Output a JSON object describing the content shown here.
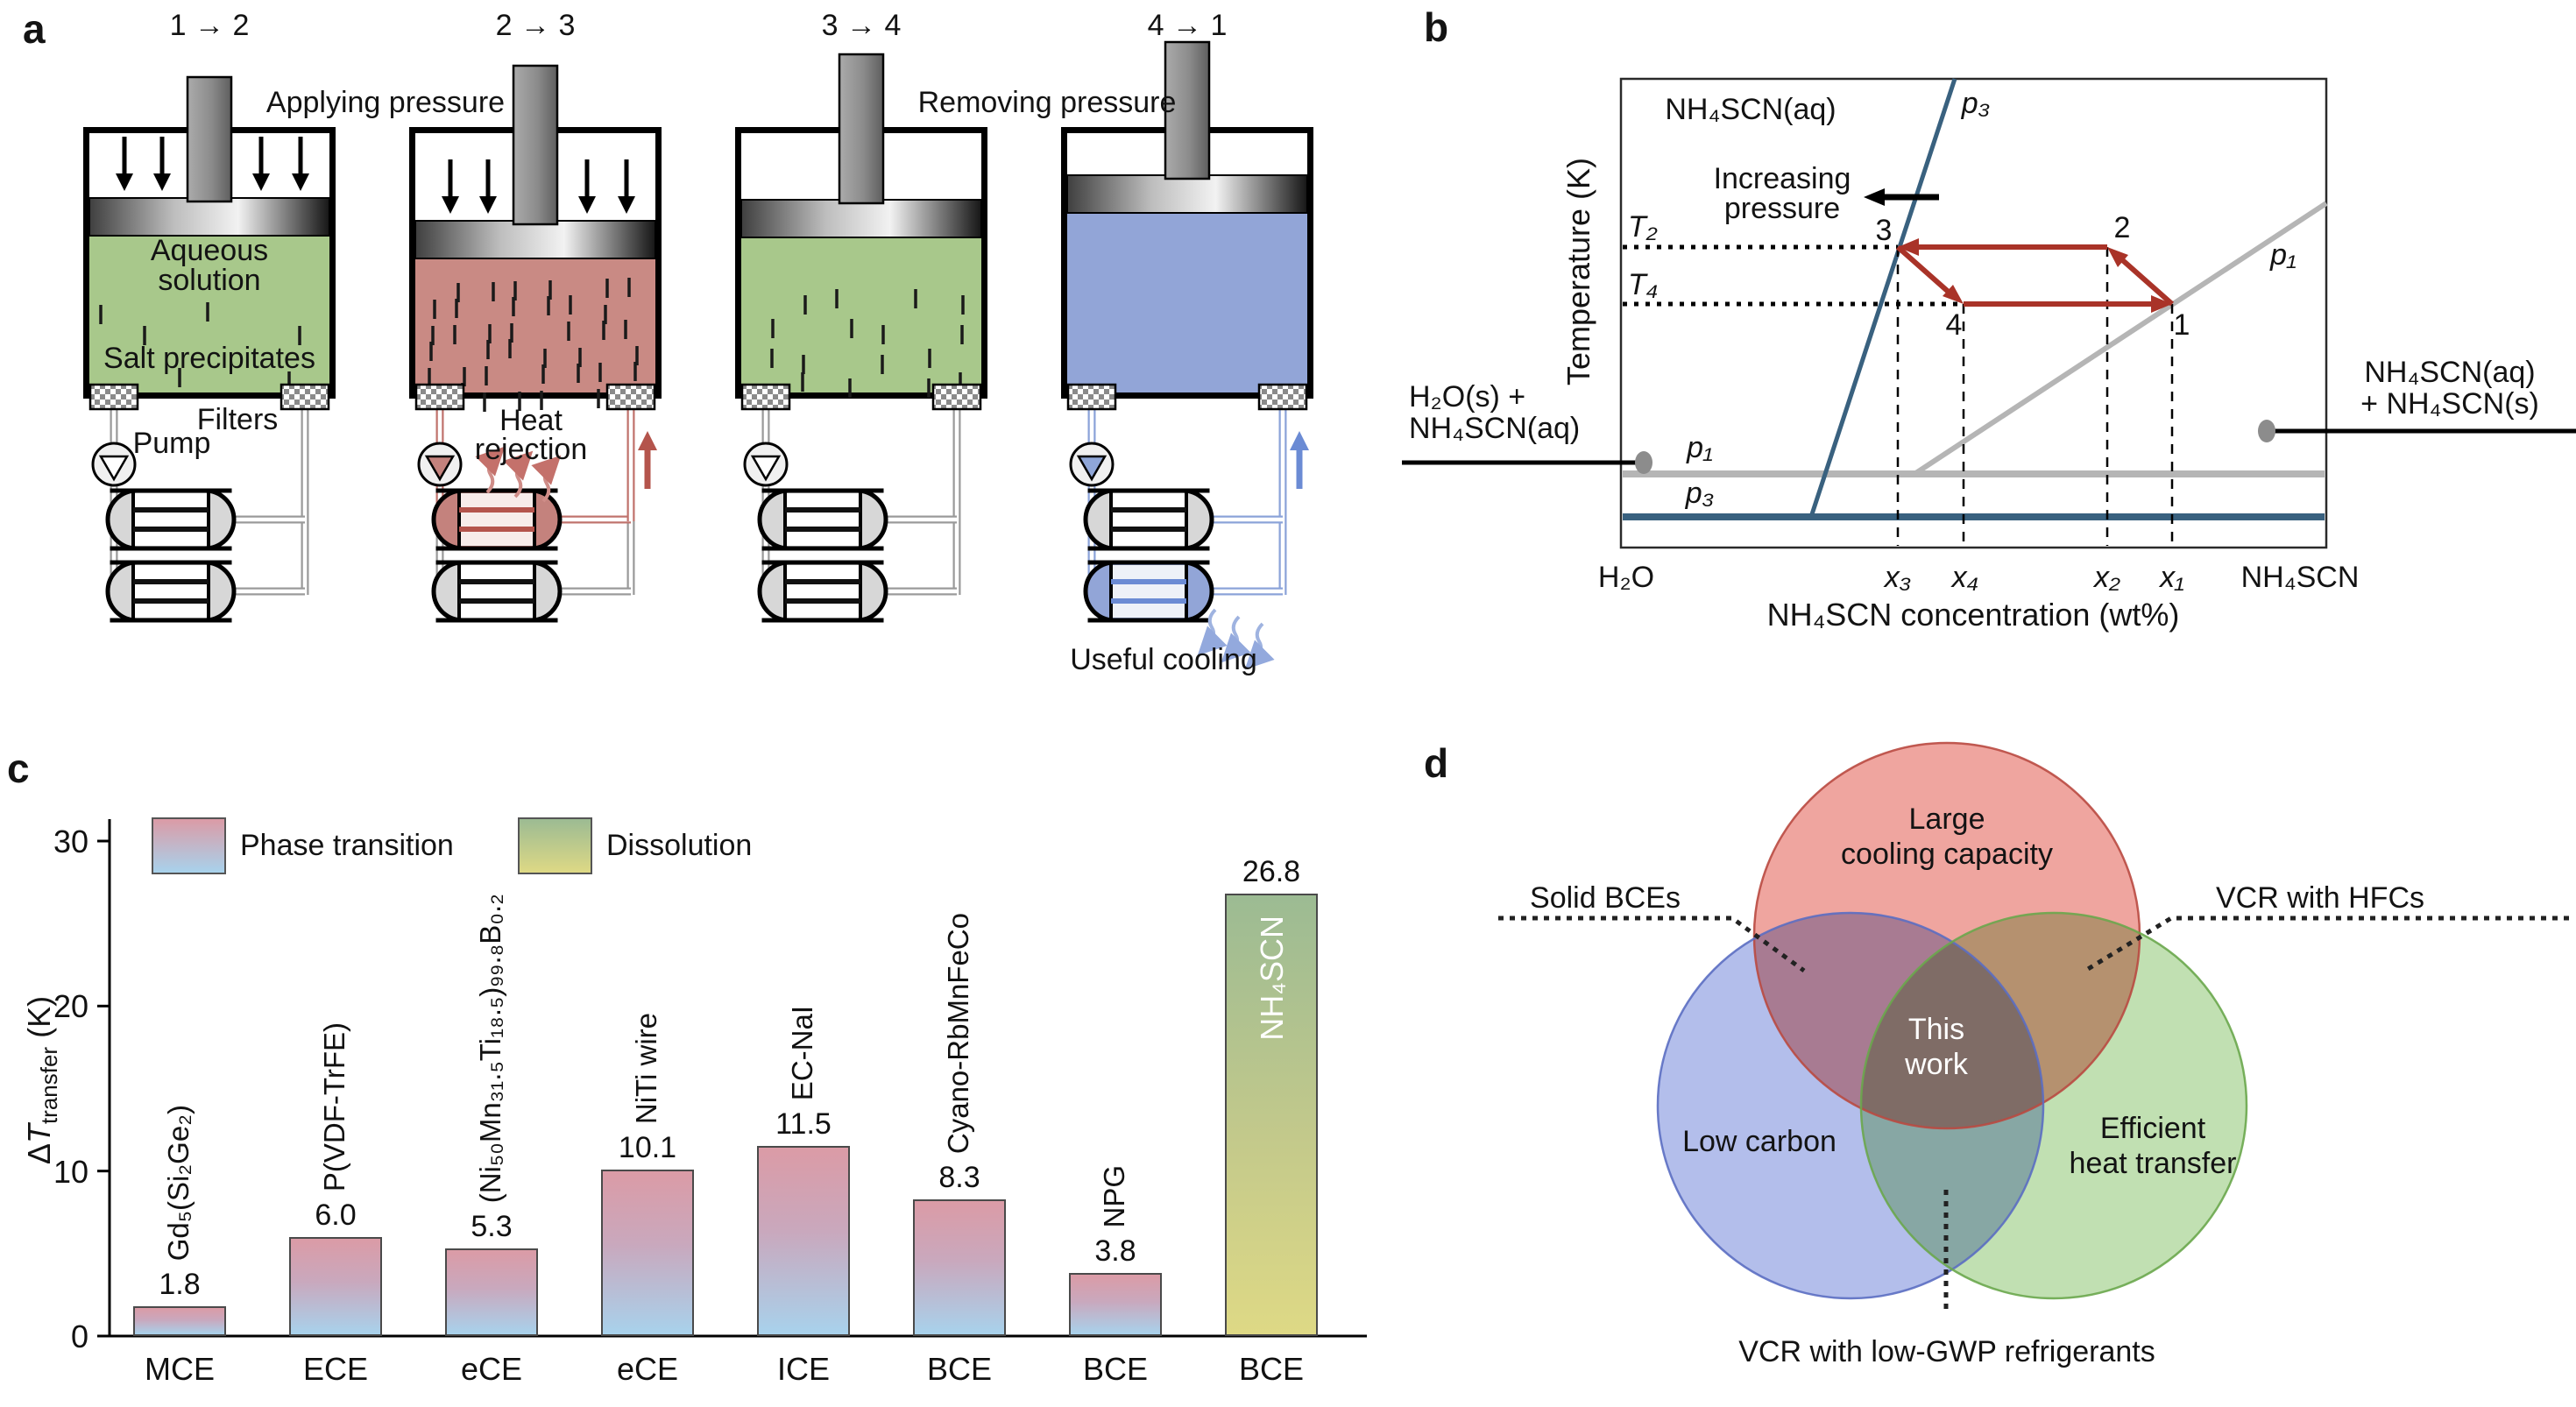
{
  "panel_a": {
    "label": "a",
    "steps": [
      "1 → 2",
      "2 → 3",
      "3 → 4",
      "4 → 1"
    ],
    "applying_pressure": "Applying pressure",
    "removing_pressure": "Removing pressure",
    "aqueous_line1": "Aqueous",
    "aqueous_line2": "solution",
    "salt_precipitates": "Salt precipitates",
    "filters_label": "Filters",
    "pump_label": "Pump",
    "heat_rejection_line1": "Heat",
    "heat_rejection_line2": "rejection",
    "useful_cooling": "Useful cooling",
    "colors": {
      "solution_green": "#a8c88b",
      "solution_red": "#c98a84",
      "solution_blue": "#92a5d7",
      "hot": "#b4544c",
      "cold": "#6b8bd4"
    }
  },
  "panel_b": {
    "label": "b",
    "ylabel": "Temperature (K)",
    "xlabel": "NH₄SCN concentration (wt%)",
    "x_left_end": "H₂O",
    "x_right_end": "NH₄SCN",
    "region_label": "NH₄SCN(aq)",
    "increasing_line1": "Increasing",
    "increasing_line2": "pressure",
    "t2": "T₂",
    "t4": "T₄",
    "pt1": "1",
    "pt2": "2",
    "pt3": "3",
    "pt4": "4",
    "x1": "x₁",
    "x2": "x₂",
    "x3": "x₃",
    "x4": "x₄",
    "p3_liquidus": "p₃",
    "p1_liquidus": "p₁",
    "p1_horizontal": "p₁",
    "p3_horizontal": "p₃",
    "left_annotation_line1": "H₂O(s) +",
    "left_annotation_line2": "NH₄SCN(aq)",
    "right_annotation_line1": "NH₄SCN(aq)",
    "right_annotation_line2": "+ NH₄SCN(s)",
    "colors": {
      "p3_line": "#39617f",
      "p1_line": "#b5b5b5",
      "cycle": "#a93328"
    }
  },
  "chart_data": {
    "type": "bar",
    "panel_label": "c",
    "categories": [
      "MCE",
      "ECE",
      "eCE",
      "eCE",
      "ICE",
      "BCE",
      "BCE",
      "BCE"
    ],
    "values": [
      1.8,
      6.0,
      5.3,
      10.1,
      11.5,
      8.3,
      3.8,
      26.8
    ],
    "value_labels": [
      "1.8",
      "6.0",
      "5.3",
      "10.1",
      "11.5",
      "8.3",
      "3.8",
      "26.8"
    ],
    "materials": [
      "Gd₅(Si₂Ge₂)",
      "P(VDF-TrFE)",
      "(Ni₅₀Mn₃₁.₅Ti₁₈.₅)₉₉.₈B₀.₂",
      "NiTi wire",
      "EC-NaI",
      "Cyano-RbMnFeCo",
      "NPG",
      "NH₄SCN"
    ],
    "bar_styles": [
      "phase",
      "phase",
      "phase",
      "phase",
      "phase",
      "phase",
      "phase",
      "dissolution"
    ],
    "legend": [
      {
        "label": "Phase transition",
        "gradient": [
          "#db9ba6",
          "#a8d2ec"
        ]
      },
      {
        "label": "Dissolution",
        "gradient": [
          "#9cbb93",
          "#ded985"
        ]
      }
    ],
    "ylabel_delta": "Δ",
    "ylabel_T": "T",
    "ylabel_sub": "transfer",
    "ylabel_units": " (K)",
    "yticks": [
      "0",
      "10",
      "20",
      "30"
    ],
    "ylim": [
      0,
      31
    ],
    "xlabel": "",
    "grid": false,
    "legend_position": "top-left"
  },
  "panel_d": {
    "label": "d",
    "set_red_line1": "Large",
    "set_red_line2": "cooling capacity",
    "set_blue": "Low carbon",
    "set_green_line1": "Efficient",
    "set_green_line2": "heat transfer",
    "center_line1": "This",
    "center_line2": "work",
    "annotation_left": "Solid BCEs",
    "annotation_right": "VCR with HFCs",
    "annotation_bottom": "VCR with low-GWP refrigerants",
    "colors": {
      "red": "#e4695f",
      "blue": "#8193dd",
      "green": "#97cc7f"
    }
  }
}
